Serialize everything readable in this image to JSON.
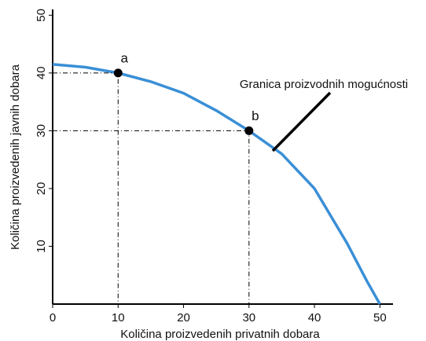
{
  "chart_data": {
    "type": "line",
    "xlabel": "Količina proizvedenih privatnih dobara",
    "ylabel": "Količina proizvedenih javnih dobara",
    "x": [
      0,
      5,
      10,
      15,
      20,
      25,
      30,
      35,
      40,
      45,
      48,
      50
    ],
    "series": [
      {
        "name": "Granica proizvodnih mogućnosti",
        "color": "#3a8fd6",
        "values": [
          41.5,
          41,
          40,
          38.5,
          36.5,
          33.5,
          30,
          26,
          20,
          10.5,
          4,
          0
        ]
      }
    ],
    "points": [
      {
        "label": "a",
        "x": 10,
        "y": 40
      },
      {
        "label": "b",
        "x": 30,
        "y": 30
      }
    ],
    "annotation": "Granica proizvodnih mogućnosti",
    "xlim": [
      0,
      52
    ],
    "ylim": [
      0,
      51
    ],
    "xticks": [
      0,
      10,
      20,
      30,
      40,
      50
    ],
    "yticks": [
      10,
      20,
      30,
      40,
      50
    ]
  }
}
